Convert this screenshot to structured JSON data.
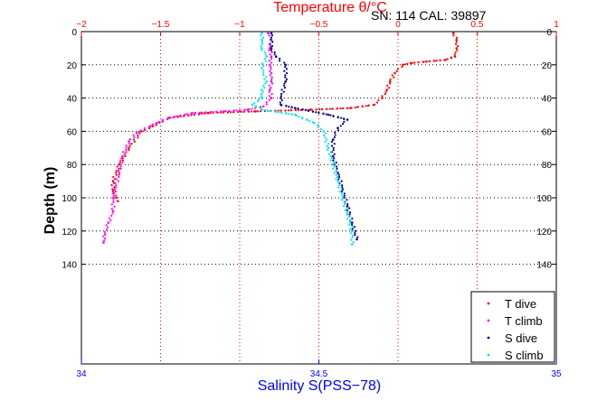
{
  "chart_data": {
    "type": "scatter",
    "top_axis": {
      "label": "Temperature θ/°C",
      "range": [
        -2,
        1
      ],
      "ticks": [
        "−2",
        "−1.5",
        "−1",
        "−0.5",
        "0",
        "0.5",
        "1"
      ],
      "color": "#ff0000"
    },
    "bottom_axis": {
      "label": "Salinity S(PSS−78)",
      "range": [
        34,
        35
      ],
      "ticks": [
        "34",
        "34.5",
        "35"
      ],
      "color": "#0000ff"
    },
    "y_axis": {
      "label": "Depth (m)",
      "range": [
        0,
        200
      ],
      "reversed": true,
      "ticks": [
        "0",
        "20",
        "40",
        "60",
        "80",
        "100",
        "120",
        "140"
      ]
    },
    "annotation": "SN: 114  CAL: 39897",
    "grid": true,
    "legend_position": "bottom-right",
    "series": [
      {
        "name": "T dive",
        "axis": "temperature",
        "color": "#ff0000",
        "points": [
          [
            0.35,
            1
          ],
          [
            0.37,
            5
          ],
          [
            0.37,
            10
          ],
          [
            0.36,
            15
          ],
          [
            0.3,
            17
          ],
          [
            0.18,
            18
          ],
          [
            0.08,
            19
          ],
          [
            0.03,
            20
          ],
          [
            -0.02,
            25
          ],
          [
            -0.05,
            30
          ],
          [
            -0.07,
            35
          ],
          [
            -0.1,
            40
          ],
          [
            -0.15,
            44
          ],
          [
            -0.3,
            46
          ],
          [
            -0.55,
            47
          ],
          [
            -0.9,
            48
          ],
          [
            -1.2,
            49
          ],
          [
            -1.45,
            52
          ],
          [
            -1.55,
            57
          ],
          [
            -1.62,
            60
          ],
          [
            -1.7,
            70
          ],
          [
            -1.76,
            80
          ],
          [
            -1.8,
            90
          ],
          [
            -1.8,
            96
          ],
          [
            -1.78,
            100
          ],
          [
            -1.77,
            102
          ]
        ]
      },
      {
        "name": "T climb",
        "axis": "temperature",
        "color": "#ff00ff",
        "points": [
          [
            -1.86,
            127
          ],
          [
            -1.85,
            122
          ],
          [
            -1.83,
            115
          ],
          [
            -1.8,
            108
          ],
          [
            -1.8,
            100
          ],
          [
            -1.79,
            95
          ],
          [
            -1.76,
            85
          ],
          [
            -1.74,
            75
          ],
          [
            -1.7,
            66
          ],
          [
            -1.65,
            61
          ],
          [
            -1.55,
            56
          ],
          [
            -1.45,
            52
          ],
          [
            -1.3,
            49
          ],
          [
            -1.1,
            48
          ],
          [
            -0.95,
            47
          ],
          [
            -0.85,
            45
          ],
          [
            -0.8,
            40
          ],
          [
            -0.81,
            35
          ],
          [
            -0.8,
            30
          ],
          [
            -0.8,
            25
          ],
          [
            -0.81,
            20
          ],
          [
            -0.8,
            15
          ],
          [
            -0.81,
            10
          ],
          [
            -0.8,
            5
          ],
          [
            -0.82,
            1
          ]
        ]
      },
      {
        "name": "S dive",
        "axis": "salinity",
        "color": "#00008b",
        "points": [
          [
            34.4,
            1
          ],
          [
            34.4,
            10
          ],
          [
            34.41,
            15
          ],
          [
            34.43,
            20
          ],
          [
            34.43,
            30
          ],
          [
            34.42,
            40
          ],
          [
            34.42,
            44
          ],
          [
            34.45,
            46
          ],
          [
            34.52,
            50
          ],
          [
            34.56,
            53
          ],
          [
            34.54,
            58
          ],
          [
            34.53,
            65
          ],
          [
            34.53,
            75
          ],
          [
            34.54,
            85
          ],
          [
            34.55,
            95
          ],
          [
            34.56,
            105
          ],
          [
            34.57,
            115
          ],
          [
            34.58,
            125
          ]
        ]
      },
      {
        "name": "S climb",
        "axis": "salinity",
        "color": "#00e5ee",
        "points": [
          [
            34.57,
            128
          ],
          [
            34.57,
            120
          ],
          [
            34.56,
            110
          ],
          [
            34.55,
            100
          ],
          [
            34.54,
            90
          ],
          [
            34.53,
            80
          ],
          [
            34.52,
            70
          ],
          [
            34.51,
            60
          ],
          [
            34.49,
            55
          ],
          [
            34.45,
            50
          ],
          [
            34.38,
            47
          ],
          [
            34.36,
            44
          ],
          [
            34.38,
            40
          ],
          [
            34.38,
            35
          ],
          [
            34.39,
            30
          ],
          [
            34.38,
            22
          ],
          [
            34.39,
            15
          ],
          [
            34.38,
            10
          ],
          [
            34.38,
            5
          ],
          [
            34.38,
            1
          ]
        ]
      }
    ]
  }
}
